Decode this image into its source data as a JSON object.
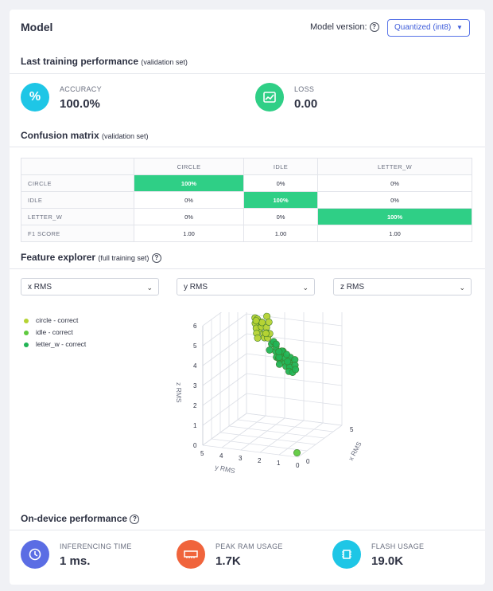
{
  "header": {
    "title": "Model",
    "version_label": "Model version:",
    "version_value": "Quantized (int8)"
  },
  "training": {
    "title": "Last training performance",
    "subtitle": "(validation set)",
    "accuracy_label": "ACCURACY",
    "accuracy_value": "100.0%",
    "loss_label": "LOSS",
    "loss_value": "0.00",
    "accuracy_icon": "percent-icon",
    "loss_icon": "chart-icon",
    "accuracy_color": "#1ec6e6",
    "loss_color": "#2fcf86"
  },
  "confusion": {
    "title": "Confusion matrix",
    "subtitle": "(validation set)",
    "columns": [
      "CIRCLE",
      "IDLE",
      "LETTER_W"
    ],
    "rows": [
      {
        "label": "CIRCLE",
        "cells": [
          "100%",
          "0%",
          "0%"
        ]
      },
      {
        "label": "IDLE",
        "cells": [
          "0%",
          "100%",
          "0%"
        ]
      },
      {
        "label": "LETTER_W",
        "cells": [
          "0%",
          "0%",
          "100%"
        ]
      },
      {
        "label": "F1 SCORE",
        "cells": [
          "1.00",
          "1.00",
          "1.00"
        ]
      }
    ],
    "highlight_color": "#2fcf86"
  },
  "explorer": {
    "title": "Feature explorer",
    "subtitle": "(full training set)",
    "x_select": "x RMS",
    "y_select": "y RMS",
    "z_select": "z RMS",
    "legend": [
      {
        "label": "circle - correct",
        "color": "#b5d334"
      },
      {
        "label": "idle - correct",
        "color": "#5fca3f"
      },
      {
        "label": "letter_w - correct",
        "color": "#22b455"
      }
    ]
  },
  "chart_data": {
    "type": "scatter",
    "title": "",
    "xlabel": "x RMS",
    "ylabel": "y RMS",
    "zlabel": "z RMS",
    "z_ticks": [
      "0",
      "1",
      "2",
      "3",
      "4",
      "5",
      "6"
    ],
    "y_ticks": [
      "5",
      "4",
      "3",
      "2",
      "1",
      "0"
    ],
    "x_ticks": [
      "0",
      "5"
    ],
    "zlim": [
      0,
      6
    ],
    "ylim": [
      0,
      5
    ],
    "series": [
      {
        "name": "circle - correct",
        "color": "#b5d334",
        "points": [
          [
            3.8,
            4.0,
            5.3
          ],
          [
            3.6,
            3.9,
            5.1
          ],
          [
            3.4,
            3.7,
            5.4
          ],
          [
            3.2,
            3.5,
            5.0
          ],
          [
            3.5,
            3.8,
            4.9
          ],
          [
            3.0,
            3.3,
            5.2
          ],
          [
            2.8,
            3.2,
            5.5
          ],
          [
            3.1,
            3.6,
            4.8
          ],
          [
            2.6,
            3.0,
            5.0
          ],
          [
            3.3,
            3.4,
            5.3
          ],
          [
            2.9,
            3.1,
            4.7
          ],
          [
            3.7,
            3.9,
            5.2
          ],
          [
            2.7,
            2.9,
            5.3
          ],
          [
            3.0,
            3.5,
            4.6
          ],
          [
            2.5,
            2.8,
            5.1
          ],
          [
            3.4,
            3.2,
            5.6
          ],
          [
            2.4,
            2.7,
            4.9
          ],
          [
            3.2,
            3.0,
            5.4
          ],
          [
            2.2,
            2.5,
            5.2
          ],
          [
            3.5,
            3.3,
            4.7
          ]
        ]
      },
      {
        "name": "idle - correct",
        "color": "#5fca3f",
        "points": [
          [
            0.3,
            0.2,
            0.1
          ]
        ]
      },
      {
        "name": "letter_w - correct",
        "color": "#22b455",
        "points": [
          [
            2.2,
            2.4,
            4.7
          ],
          [
            2.0,
            2.2,
            4.9
          ],
          [
            1.8,
            2.0,
            4.5
          ],
          [
            2.4,
            2.6,
            4.3
          ],
          [
            1.6,
            1.9,
            4.8
          ],
          [
            2.1,
            2.1,
            4.1
          ],
          [
            1.9,
            1.7,
            4.4
          ],
          [
            2.3,
            2.0,
            3.9
          ],
          [
            1.7,
            1.8,
            4.2
          ],
          [
            2.5,
            2.3,
            4.6
          ],
          [
            1.5,
            1.6,
            4.5
          ],
          [
            2.0,
            1.9,
            3.8
          ],
          [
            1.8,
            1.5,
            4.0
          ],
          [
            2.2,
            1.8,
            4.4
          ],
          [
            1.6,
            1.4,
            4.3
          ],
          [
            2.4,
            2.1,
            4.0
          ],
          [
            1.4,
            1.5,
            4.7
          ],
          [
            2.1,
            1.6,
            3.7
          ],
          [
            1.9,
            1.3,
            4.1
          ],
          [
            2.6,
            2.2,
            4.2
          ],
          [
            1.7,
            1.2,
            3.9
          ],
          [
            2.3,
            1.5,
            3.6
          ],
          [
            1.5,
            1.1,
            4.4
          ],
          [
            2.0,
            1.4,
            3.5
          ],
          [
            1.8,
            1.0,
            4.2
          ],
          [
            2.2,
            1.3,
            3.4
          ],
          [
            1.3,
            1.2,
            4.6
          ],
          [
            2.5,
            1.7,
            3.8
          ],
          [
            1.6,
            0.9,
            4.0
          ],
          [
            2.1,
            1.1,
            3.6
          ]
        ]
      }
    ]
  },
  "device": {
    "title": "On-device performance",
    "items": [
      {
        "label": "INFERENCING TIME",
        "value": "1 ms.",
        "icon": "clock-icon",
        "color": "#5b6de4"
      },
      {
        "label": "PEAK RAM USAGE",
        "value": "1.7K",
        "icon": "ram-chip-icon",
        "color": "#f0643c"
      },
      {
        "label": "FLASH USAGE",
        "value": "19.0K",
        "icon": "flash-chip-icon",
        "color": "#1ec6e6"
      }
    ]
  }
}
